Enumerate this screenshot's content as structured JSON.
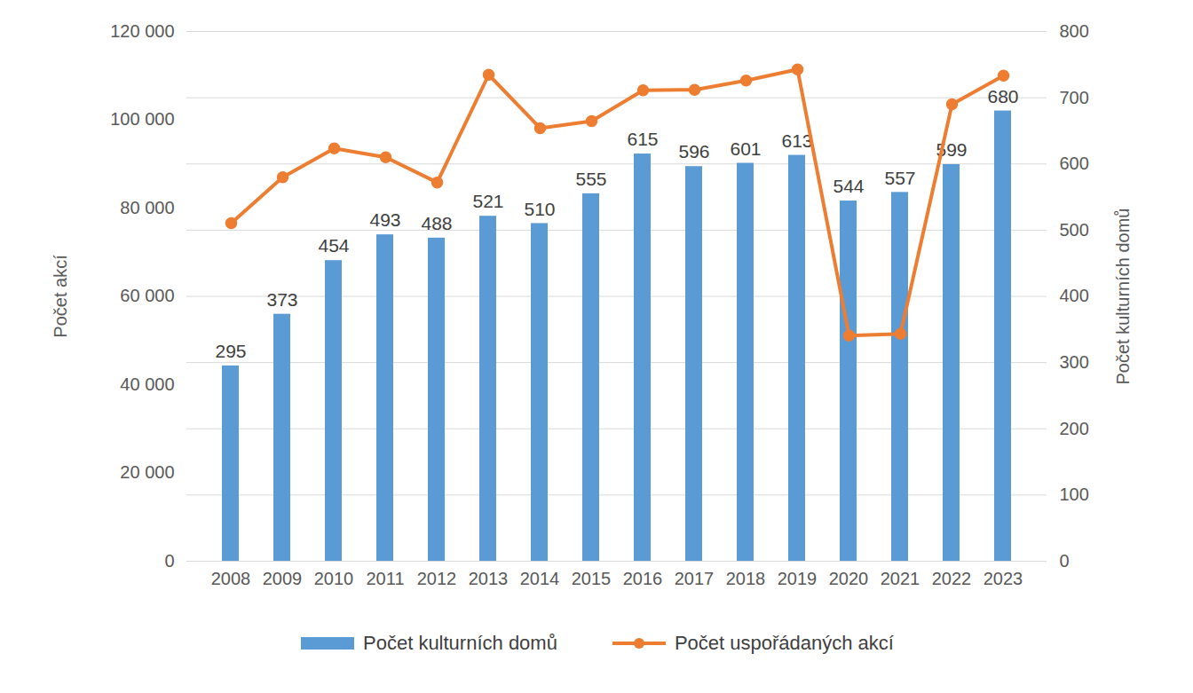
{
  "chart_data": {
    "type": "bar",
    "categories": [
      "2008",
      "2009",
      "2010",
      "2011",
      "2012",
      "2013",
      "2014",
      "2015",
      "2016",
      "2017",
      "2018",
      "2019",
      "2020",
      "2021",
      "2022",
      "2023"
    ],
    "series": [
      {
        "name": "Počet kulturních domů",
        "type": "bar",
        "axis": "y2",
        "color": "#5b9bd5",
        "data_labels": true,
        "values": [
          295,
          373,
          454,
          493,
          488,
          521,
          510,
          555,
          615,
          596,
          601,
          613,
          544,
          557,
          599,
          680
        ]
      },
      {
        "name": "Počet uspořádaných akcí",
        "type": "line",
        "color": "#ed7d31",
        "marker": "circle",
        "values": [
          76600,
          87000,
          93500,
          91500,
          85800,
          110200,
          98100,
          99700,
          106700,
          106800,
          108900,
          111400,
          51100,
          51500,
          103500,
          110000
        ]
      }
    ],
    "ylabel": "Počet akcí",
    "y2label": "Počet kulturních domů",
    "ylim": [
      0,
      120000
    ],
    "yticks": [
      0,
      {
        "value": 20000,
        "label": "20 000"
      },
      {
        "value": 40000,
        "label": "40 000"
      },
      {
        "value": 60000,
        "label": "60 000"
      },
      {
        "value": 80000,
        "label": "80 000"
      },
      {
        "value": 100000,
        "label": "100 000"
      },
      {
        "value": 120000,
        "label": "120 000"
      }
    ],
    "y2lim": [
      0,
      800
    ],
    "y2ticks": [
      0,
      100,
      200,
      300,
      400,
      500,
      600,
      700,
      800
    ],
    "grid": true,
    "legend": "bottom"
  }
}
